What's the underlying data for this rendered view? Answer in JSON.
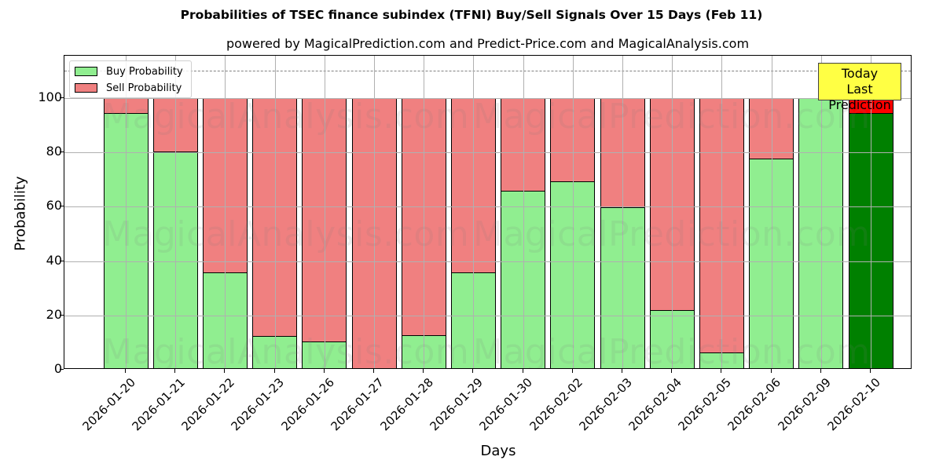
{
  "chart_data": {
    "type": "bar",
    "stacked": true,
    "title": "Probabilities of TSEC finance subindex (TFNI) Buy/Sell Signals Over 15 Days (Feb 11)",
    "subtitle": "powered by MagicalPrediction.com and Predict-Price.com and MagicalAnalysis.com",
    "xlabel": "Days",
    "ylabel": "Probability",
    "ylim": [
      0,
      115
    ],
    "yticks": [
      0,
      20,
      40,
      60,
      80,
      100
    ],
    "grid": true,
    "legend_position": "upper left",
    "categories": [
      "2026-01-20",
      "2026-01-21",
      "2026-01-22",
      "2026-01-23",
      "2026-01-26",
      "2026-01-27",
      "2026-01-28",
      "2026-01-29",
      "2026-01-30",
      "2026-02-02",
      "2026-02-03",
      "2026-02-04",
      "2026-02-05",
      "2026-02-06",
      "2026-02-09",
      "2026-02-10"
    ],
    "series": [
      {
        "name": "Buy Probability",
        "color": "#90ee90",
        "values": [
          94.4,
          80.3,
          35.8,
          12.4,
          10.5,
          0.0,
          12.7,
          35.8,
          65.8,
          69.5,
          59.7,
          22.1,
          6.4,
          77.7,
          100.0,
          94.4
        ]
      },
      {
        "name": "Sell Probability",
        "color": "#f08080",
        "values": [
          5.6,
          19.7,
          64.2,
          87.6,
          89.5,
          100.0,
          87.3,
          64.2,
          34.2,
          30.5,
          40.3,
          77.9,
          93.6,
          22.3,
          0.0,
          5.6
        ]
      }
    ],
    "highlight": {
      "index": 15,
      "buy_color": "#008000",
      "sell_color": "#ff0000"
    },
    "reference_line": {
      "y": 110,
      "style": "dashed",
      "color": "#808080"
    },
    "annotation": {
      "line1": "Today",
      "line2": "Last Prediction",
      "background": "#ffff44"
    },
    "watermarks": [
      "MagicalAnalysis.com",
      "MagicalPrediction.com"
    ]
  }
}
